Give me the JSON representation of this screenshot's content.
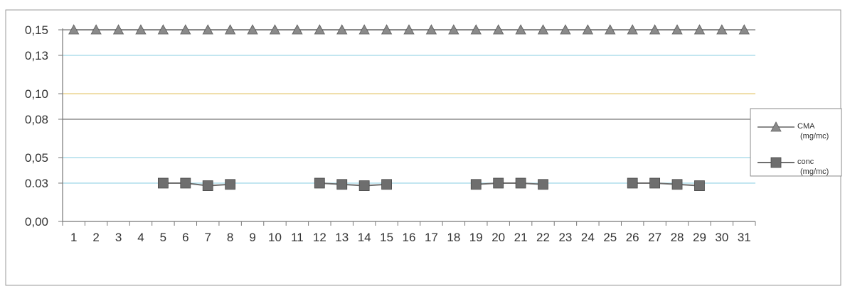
{
  "chart_data": {
    "type": "line",
    "title": "",
    "xlabel": "",
    "ylabel": "",
    "categories": [
      "1",
      "2",
      "3",
      "4",
      "5",
      "6",
      "7",
      "8",
      "9",
      "10",
      "11",
      "12",
      "13",
      "14",
      "15",
      "16",
      "17",
      "18",
      "19",
      "20",
      "21",
      "22",
      "23",
      "24",
      "25",
      "26",
      "27",
      "28",
      "29",
      "30",
      "31"
    ],
    "y_ticks": [
      0.0,
      0.03,
      0.05,
      0.08,
      0.1,
      0.13,
      0.15
    ],
    "y_tick_labels": [
      "0,00",
      "0.03",
      "0,05",
      "0,08",
      "0,10",
      "0,13",
      "0,15"
    ],
    "ylim": [
      0,
      0.15
    ],
    "grid": true,
    "legend_position": "right",
    "series": [
      {
        "name": "CMA (mg/mc)",
        "legend_lines": [
          "CMA",
          "(mg/mc)"
        ],
        "marker": "triangle",
        "color": "#8a8a8a",
        "values": [
          0.15,
          0.15,
          0.15,
          0.15,
          0.15,
          0.15,
          0.15,
          0.15,
          0.15,
          0.15,
          0.15,
          0.15,
          0.15,
          0.15,
          0.15,
          0.15,
          0.15,
          0.15,
          0.15,
          0.15,
          0.15,
          0.15,
          0.15,
          0.15,
          0.15,
          0.15,
          0.15,
          0.15,
          0.15,
          0.15,
          0.15
        ]
      },
      {
        "name": "conc (mg/mc)",
        "legend_lines": [
          "conc",
          "(mg/mc)"
        ],
        "marker": "square",
        "color": "#6e6e6e",
        "values": [
          null,
          null,
          null,
          null,
          0.03,
          0.03,
          0.028,
          0.029,
          null,
          null,
          null,
          0.03,
          0.029,
          0.028,
          0.029,
          null,
          null,
          null,
          0.029,
          0.03,
          0.03,
          0.029,
          null,
          null,
          null,
          0.03,
          0.03,
          0.029,
          0.028,
          null,
          null
        ]
      }
    ],
    "colors": {
      "grid_dark": "#555555",
      "grid_cyan": "#9fd8e6",
      "grid_yellow": "#e6cc7a",
      "axis": "#777777",
      "text": "#333333"
    }
  }
}
